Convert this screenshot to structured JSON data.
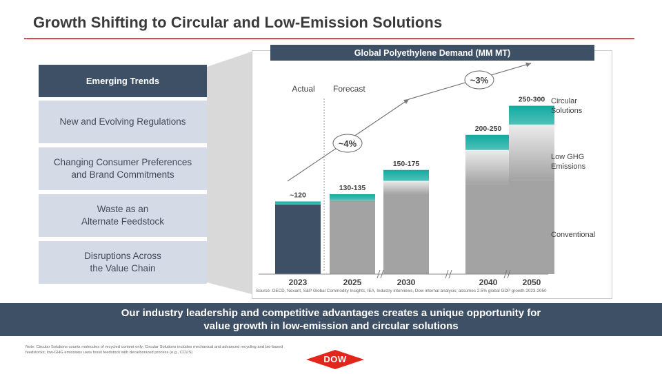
{
  "title": "Growth Shifting to Circular and Low-Emission Solutions",
  "trends": {
    "header": "Emerging Trends",
    "items": [
      "New and Evolving Regulations",
      "Changing Consumer Preferences\nand Brand Commitments",
      "Waste as an\nAlternate Feedstock",
      "Disruptions Across\nthe Value Chain"
    ]
  },
  "chart_data": {
    "type": "bar",
    "title": "Global Polyethylene Demand (MM MT)",
    "categories": [
      "2023",
      "2025",
      "2030",
      "2040",
      "2050"
    ],
    "data_labels": [
      "~120",
      "130-135",
      "150-175",
      "200-250",
      "250-300"
    ],
    "series": [
      {
        "name": "Conventional",
        "values": [
          115,
          122,
          132,
          148,
          155
        ]
      },
      {
        "name": "Low GHG Emissions",
        "values": [
          0,
          0,
          22,
          57,
          92
        ]
      },
      {
        "name": "Circular Solutions",
        "values": [
          5,
          10,
          18,
          25,
          31
        ]
      }
    ],
    "actual_label": "Actual",
    "forecast_label": "Forecast",
    "growth_labels": [
      "~4%",
      "~3%"
    ],
    "legend": [
      "Circular\nSolutions",
      "Low GHG\nEmissions",
      "Conventional"
    ],
    "ylim": [
      0,
      290
    ],
    "colors": {
      "actual": "#3d5066",
      "conventional": "#a3a3a3",
      "circular": "#12aaa0",
      "lowghg_top": "#ececec"
    }
  },
  "source": "Source: OECD, Nexant, S&P Global Commodity Insights, IEA, Industry interviews, Dow internal analysis; assumes 2.5% global GDP growth 2023-2050",
  "banner": {
    "line1": "Our industry leadership and competitive advantages creates a unique opportunity for",
    "line2": "value growth in low-emission and circular solutions"
  },
  "note": "Note: Circular Solutions counts molecules of recycled content only; Circular Solutions includes mechanical and advanced recycling and bio-based feedstocks; low-GHG emissions uses fossil feedstock with decarbonized process (e.g., CCUS)",
  "logo": {
    "text": "DOW",
    "color": "#e1261c"
  }
}
